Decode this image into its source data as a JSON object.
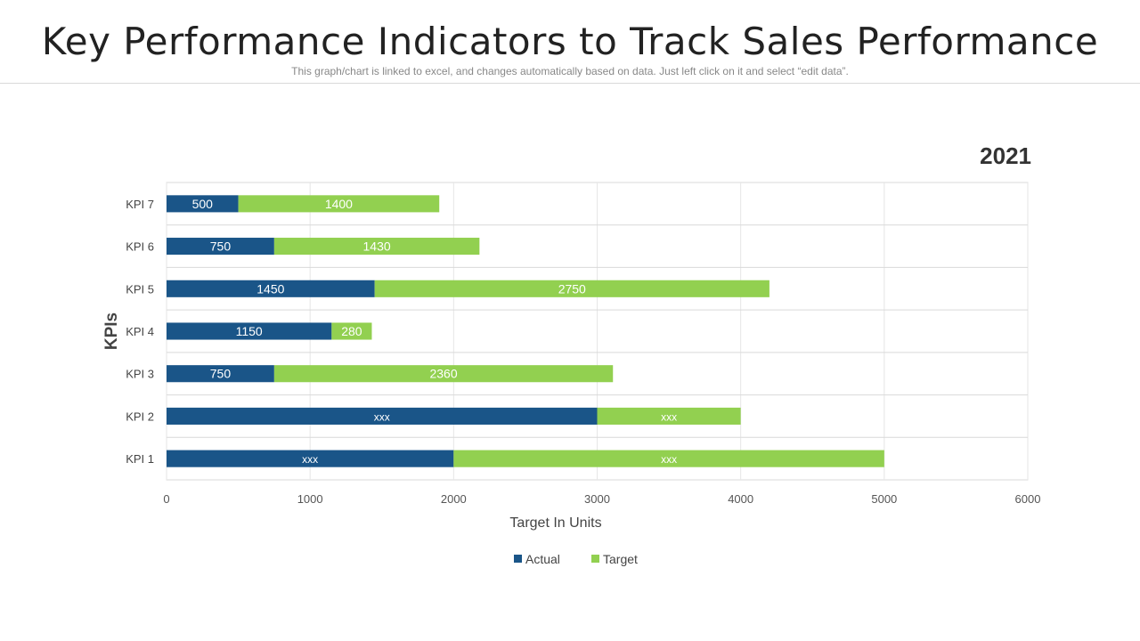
{
  "header": {
    "title": "Key Performance Indicators to Track Sales Performance",
    "subtitle": "This graph/chart is linked to excel, and changes automatically based on data. Just left click on it and select “edit data”."
  },
  "chart_data": {
    "type": "bar",
    "orientation": "horizontal",
    "stacked": true,
    "title": "2021",
    "xlabel": "Target In Units",
    "ylabel": "KPIs",
    "xlim": [
      0,
      6000
    ],
    "xticks": [
      0,
      1000,
      2000,
      3000,
      4000,
      5000,
      6000
    ],
    "categories": [
      "KPI 1",
      "KPI 2",
      "KPI 3",
      "KPI 4",
      "KPI 5",
      "KPI 6",
      "KPI 7"
    ],
    "series": [
      {
        "name": "Actual",
        "color": "#1a5588",
        "values": [
          2000,
          3000,
          750,
          1150,
          1450,
          750,
          500
        ],
        "labels": [
          "xxx",
          "xxx",
          "750",
          "1150",
          "1450",
          "750",
          "500"
        ]
      },
      {
        "name": "Target",
        "color": "#92d050",
        "values": [
          3000,
          1000,
          2360,
          280,
          2750,
          1430,
          1400
        ],
        "labels": [
          "xxx",
          "xxx",
          "2360",
          "280",
          "2750",
          "1430",
          "1400"
        ]
      }
    ],
    "grid": true,
    "legend_position": "bottom"
  }
}
